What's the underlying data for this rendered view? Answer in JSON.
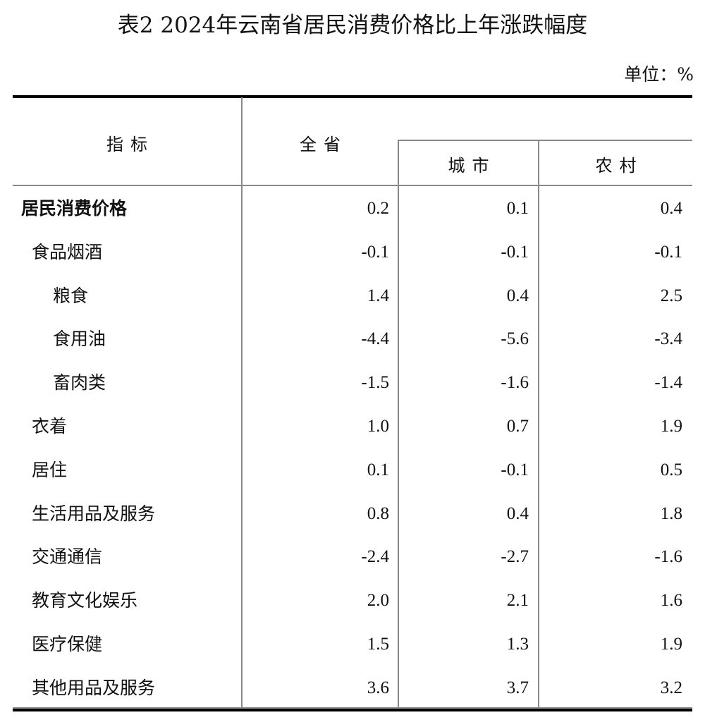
{
  "title": "表2  2024年云南省居民消费价格比上年涨跌幅度",
  "unit": "单位：%",
  "headers": {
    "indicator": "指标",
    "province": "全省",
    "urban": "城市",
    "rural": "农村"
  },
  "rows": [
    {
      "label": "居民消费价格",
      "level": 0,
      "province": "0.2",
      "urban": "0.1",
      "rural": "0.4"
    },
    {
      "label": "食品烟酒",
      "level": 1,
      "province": "-0.1",
      "urban": "-0.1",
      "rural": "-0.1"
    },
    {
      "label": "粮食",
      "level": 2,
      "province": "1.4",
      "urban": "0.4",
      "rural": "2.5"
    },
    {
      "label": "食用油",
      "level": 2,
      "province": "-4.4",
      "urban": "-5.6",
      "rural": "-3.4"
    },
    {
      "label": "畜肉类",
      "level": 2,
      "province": "-1.5",
      "urban": "-1.6",
      "rural": "-1.4"
    },
    {
      "label": "衣着",
      "level": 1,
      "province": "1.0",
      "urban": "0.7",
      "rural": "1.9"
    },
    {
      "label": "居住",
      "level": 1,
      "province": "0.1",
      "urban": "-0.1",
      "rural": "0.5"
    },
    {
      "label": "生活用品及服务",
      "level": 1,
      "province": "0.8",
      "urban": "0.4",
      "rural": "1.8"
    },
    {
      "label": "交通通信",
      "level": 1,
      "province": "-2.4",
      "urban": "-2.7",
      "rural": "-1.6"
    },
    {
      "label": "教育文化娱乐",
      "level": 1,
      "province": "2.0",
      "urban": "2.1",
      "rural": "1.6"
    },
    {
      "label": "医疗保健",
      "level": 1,
      "province": "1.5",
      "urban": "1.3",
      "rural": "1.9"
    },
    {
      "label": "其他用品及服务",
      "level": 1,
      "province": "3.6",
      "urban": "3.7",
      "rural": "3.2"
    }
  ]
}
